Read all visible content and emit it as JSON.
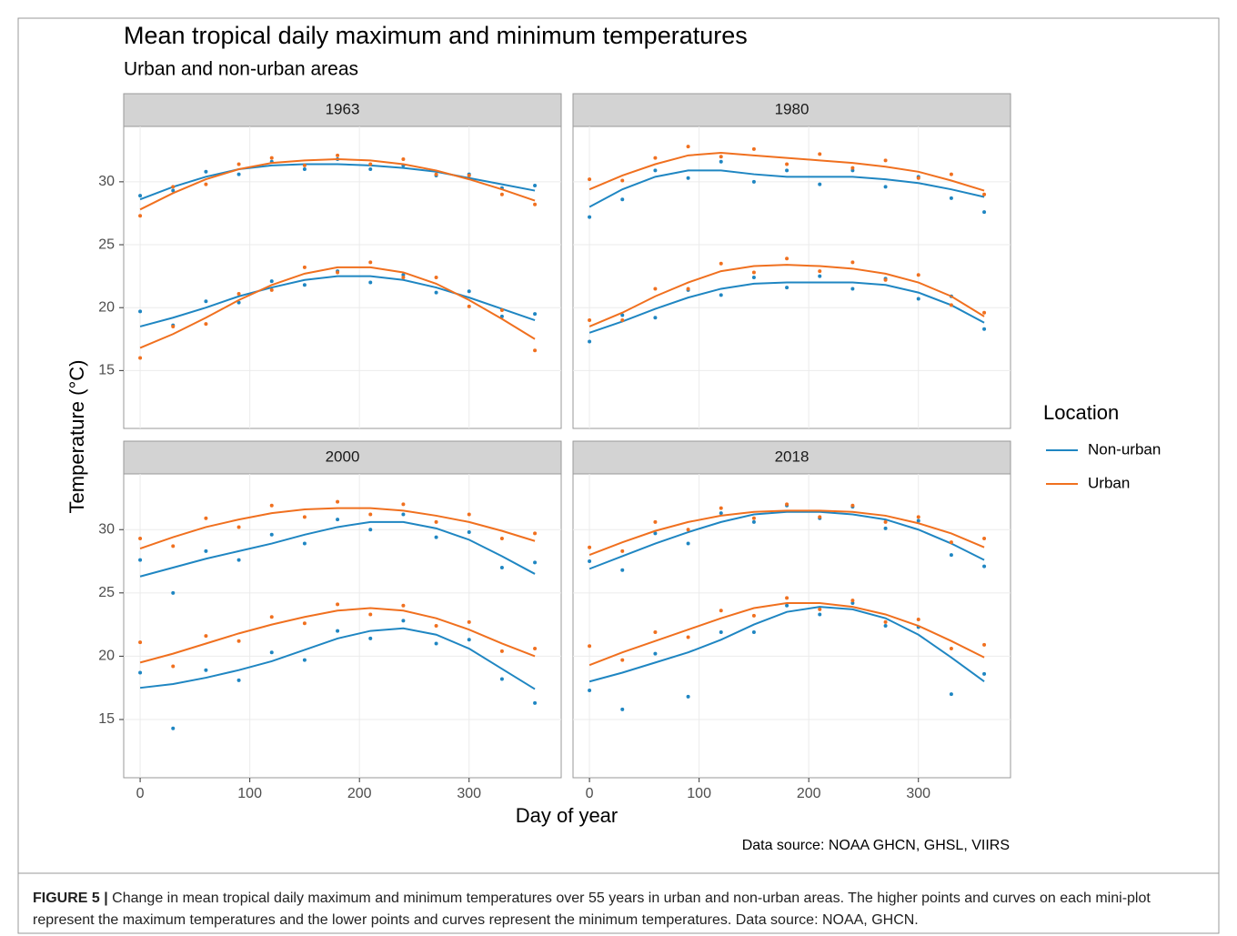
{
  "figure": {
    "title": "Mean tropical daily maximum and minimum temperatures",
    "subtitle": "Urban and non-urban areas",
    "x_label": "Day of year",
    "y_label": "Temperature (°C)",
    "legend_title": "Location",
    "source": "Data source: NOAA GHCN, GHSL, VIIRS",
    "caption_label": "FIGURE 5 |",
    "caption_text": "Change in mean tropical daily maximum and minimum temperatures over 55 years in urban and non-urban areas. The higher points and curves on each mini-plot represent the maximum temperatures and the lower points and curves represent the minimum temperatures. Data source: NOAA, GHCN."
  },
  "chart_data": [
    {
      "type": "scatter",
      "title": "1963",
      "x": [
        0,
        30,
        60,
        90,
        120,
        150,
        180,
        210,
        240,
        270,
        300,
        330,
        360
      ],
      "xlim": [
        -15,
        384
      ],
      "ylim": [
        10.4,
        34.4
      ],
      "xticks": [
        0,
        100,
        200,
        300
      ],
      "yticks": [
        15,
        20,
        25,
        30
      ],
      "grid": true,
      "series": [
        {
          "name": "Non-urban",
          "color": "#1f86c2",
          "max": [
            28.9,
            29.3,
            30.8,
            30.6,
            31.6,
            31.0,
            31.8,
            31.0,
            31.3,
            30.5,
            30.6,
            29.5,
            29.7
          ],
          "max_fit": [
            28.6,
            29.6,
            30.4,
            31.0,
            31.3,
            31.4,
            31.4,
            31.3,
            31.1,
            30.8,
            30.3,
            29.8,
            29.3
          ],
          "min": [
            19.7,
            18.6,
            20.5,
            20.4,
            22.1,
            21.8,
            22.9,
            22.0,
            22.6,
            21.2,
            21.3,
            19.3,
            19.5
          ],
          "min_fit": [
            18.5,
            19.2,
            20.0,
            20.9,
            21.6,
            22.2,
            22.5,
            22.5,
            22.2,
            21.6,
            20.8,
            19.9,
            19.0
          ]
        },
        {
          "name": "Urban",
          "color": "#f0701f",
          "max": [
            27.3,
            29.6,
            29.8,
            31.4,
            31.9,
            31.3,
            32.1,
            31.4,
            31.8,
            30.6,
            30.5,
            29.0,
            28.2
          ],
          "max_fit": [
            27.8,
            29.1,
            30.2,
            31.0,
            31.5,
            31.7,
            31.8,
            31.7,
            31.4,
            30.9,
            30.2,
            29.4,
            28.5
          ],
          "min": [
            16.0,
            18.5,
            18.7,
            21.1,
            21.4,
            23.2,
            22.8,
            23.6,
            22.4,
            22.4,
            20.1,
            19.8,
            16.6
          ],
          "min_fit": [
            16.8,
            17.9,
            19.2,
            20.6,
            21.8,
            22.7,
            23.2,
            23.2,
            22.8,
            21.9,
            20.6,
            19.1,
            17.5
          ]
        }
      ]
    },
    {
      "type": "scatter",
      "title": "1980",
      "x": [
        0,
        30,
        60,
        90,
        120,
        150,
        180,
        210,
        240,
        270,
        300,
        330,
        360
      ],
      "xlim": [
        -15,
        384
      ],
      "ylim": [
        10.4,
        34.4
      ],
      "xticks": [
        0,
        100,
        200,
        300
      ],
      "yticks": [
        15,
        20,
        25,
        30
      ],
      "grid": true,
      "series": [
        {
          "name": "Non-urban",
          "color": "#1f86c2",
          "max": [
            27.2,
            28.6,
            30.9,
            30.3,
            31.6,
            30.0,
            30.9,
            29.8,
            30.9,
            29.6,
            30.4,
            28.7,
            27.6
          ],
          "max_fit": [
            28.0,
            29.4,
            30.4,
            30.9,
            30.9,
            30.6,
            30.4,
            30.4,
            30.4,
            30.2,
            29.9,
            29.4,
            28.8
          ],
          "min": [
            17.3,
            19.4,
            19.2,
            21.4,
            21.0,
            22.4,
            21.6,
            22.5,
            21.5,
            22.3,
            20.7,
            20.9,
            18.3
          ],
          "min_fit": [
            18.0,
            18.9,
            19.9,
            20.8,
            21.5,
            21.9,
            22.0,
            22.0,
            22.0,
            21.8,
            21.2,
            20.2,
            18.8
          ]
        },
        {
          "name": "Urban",
          "color": "#f0701f",
          "max": [
            30.2,
            30.1,
            31.9,
            32.8,
            32.0,
            32.6,
            31.4,
            32.2,
            31.1,
            31.7,
            30.3,
            30.6,
            29.0
          ],
          "max_fit": [
            29.4,
            30.5,
            31.4,
            32.1,
            32.3,
            32.1,
            31.9,
            31.7,
            31.5,
            31.2,
            30.8,
            30.1,
            29.3
          ],
          "min": [
            19.0,
            19.0,
            21.5,
            21.5,
            23.5,
            22.8,
            23.9,
            22.9,
            23.6,
            22.2,
            22.6,
            20.2,
            19.6
          ],
          "min_fit": [
            18.5,
            19.6,
            20.9,
            22.0,
            22.9,
            23.3,
            23.4,
            23.3,
            23.1,
            22.7,
            22.0,
            20.9,
            19.3
          ]
        }
      ]
    },
    {
      "type": "scatter",
      "title": "2000",
      "x": [
        0,
        30,
        60,
        90,
        120,
        150,
        180,
        210,
        240,
        270,
        300,
        330,
        360
      ],
      "xlim": [
        -15,
        384
      ],
      "ylim": [
        10.4,
        34.4
      ],
      "xticks": [
        0,
        100,
        200,
        300
      ],
      "yticks": [
        15,
        20,
        25,
        30
      ],
      "grid": true,
      "series": [
        {
          "name": "Non-urban",
          "color": "#1f86c2",
          "max": [
            27.6,
            25.0,
            28.3,
            27.6,
            29.6,
            28.9,
            30.8,
            30.0,
            31.2,
            29.4,
            29.8,
            27.0,
            27.4
          ],
          "max_fit": [
            26.3,
            27.0,
            27.7,
            28.3,
            28.9,
            29.6,
            30.2,
            30.6,
            30.6,
            30.1,
            29.2,
            27.9,
            26.5
          ],
          "min": [
            18.7,
            14.3,
            18.9,
            18.1,
            20.3,
            19.7,
            22.0,
            21.4,
            22.8,
            21.0,
            21.3,
            18.2,
            16.3
          ],
          "min_fit": [
            17.5,
            17.8,
            18.3,
            18.9,
            19.6,
            20.5,
            21.4,
            22.0,
            22.2,
            21.7,
            20.6,
            19.0,
            17.4
          ]
        },
        {
          "name": "Urban",
          "color": "#f0701f",
          "max": [
            29.3,
            28.7,
            30.9,
            30.2,
            31.9,
            31.0,
            32.2,
            31.2,
            32.0,
            30.6,
            31.2,
            29.3,
            29.7
          ],
          "max_fit": [
            28.5,
            29.4,
            30.2,
            30.8,
            31.3,
            31.6,
            31.7,
            31.7,
            31.5,
            31.1,
            30.6,
            29.9,
            29.1
          ],
          "min": [
            21.1,
            19.2,
            21.6,
            21.2,
            23.1,
            22.6,
            24.1,
            23.3,
            24.0,
            22.4,
            22.7,
            20.4,
            20.6
          ],
          "min_fit": [
            19.5,
            20.2,
            21.0,
            21.8,
            22.5,
            23.1,
            23.6,
            23.8,
            23.6,
            23.0,
            22.1,
            21.0,
            20.0
          ]
        }
      ]
    },
    {
      "type": "scatter",
      "title": "2018",
      "x": [
        0,
        30,
        60,
        90,
        120,
        150,
        180,
        210,
        240,
        270,
        300,
        330,
        360
      ],
      "xlim": [
        -15,
        384
      ],
      "ylim": [
        10.4,
        34.4
      ],
      "xticks": [
        0,
        100,
        200,
        300
      ],
      "yticks": [
        15,
        20,
        25,
        30
      ],
      "grid": true,
      "series": [
        {
          "name": "Non-urban",
          "color": "#1f86c2",
          "max": [
            27.5,
            26.8,
            29.7,
            28.9,
            31.3,
            30.6,
            31.9,
            30.9,
            31.8,
            30.1,
            30.7,
            28.0,
            27.1
          ],
          "max_fit": [
            26.9,
            27.9,
            28.9,
            29.8,
            30.6,
            31.2,
            31.4,
            31.4,
            31.2,
            30.8,
            30.0,
            28.9,
            27.6
          ],
          "min": [
            17.3,
            15.8,
            20.2,
            16.8,
            21.9,
            21.9,
            24.0,
            23.3,
            24.2,
            22.4,
            22.3,
            17.0,
            18.6
          ],
          "min_fit": [
            18.0,
            18.7,
            19.5,
            20.3,
            21.3,
            22.5,
            23.5,
            23.9,
            23.7,
            23.0,
            21.7,
            19.9,
            18.0
          ]
        },
        {
          "name": "Urban",
          "color": "#f0701f",
          "max": [
            28.6,
            28.3,
            30.6,
            30.0,
            31.7,
            30.9,
            32.0,
            31.0,
            31.9,
            30.6,
            31.0,
            29.0,
            29.3
          ],
          "max_fit": [
            28.0,
            29.0,
            29.9,
            30.6,
            31.1,
            31.4,
            31.5,
            31.5,
            31.4,
            31.1,
            30.5,
            29.7,
            28.6
          ],
          "min": [
            20.8,
            19.7,
            21.9,
            21.5,
            23.6,
            23.2,
            24.6,
            23.7,
            24.4,
            22.7,
            22.9,
            20.6,
            20.9
          ],
          "min_fit": [
            19.3,
            20.3,
            21.2,
            22.1,
            23.0,
            23.8,
            24.2,
            24.2,
            23.9,
            23.3,
            22.4,
            21.2,
            19.9
          ]
        }
      ]
    }
  ]
}
